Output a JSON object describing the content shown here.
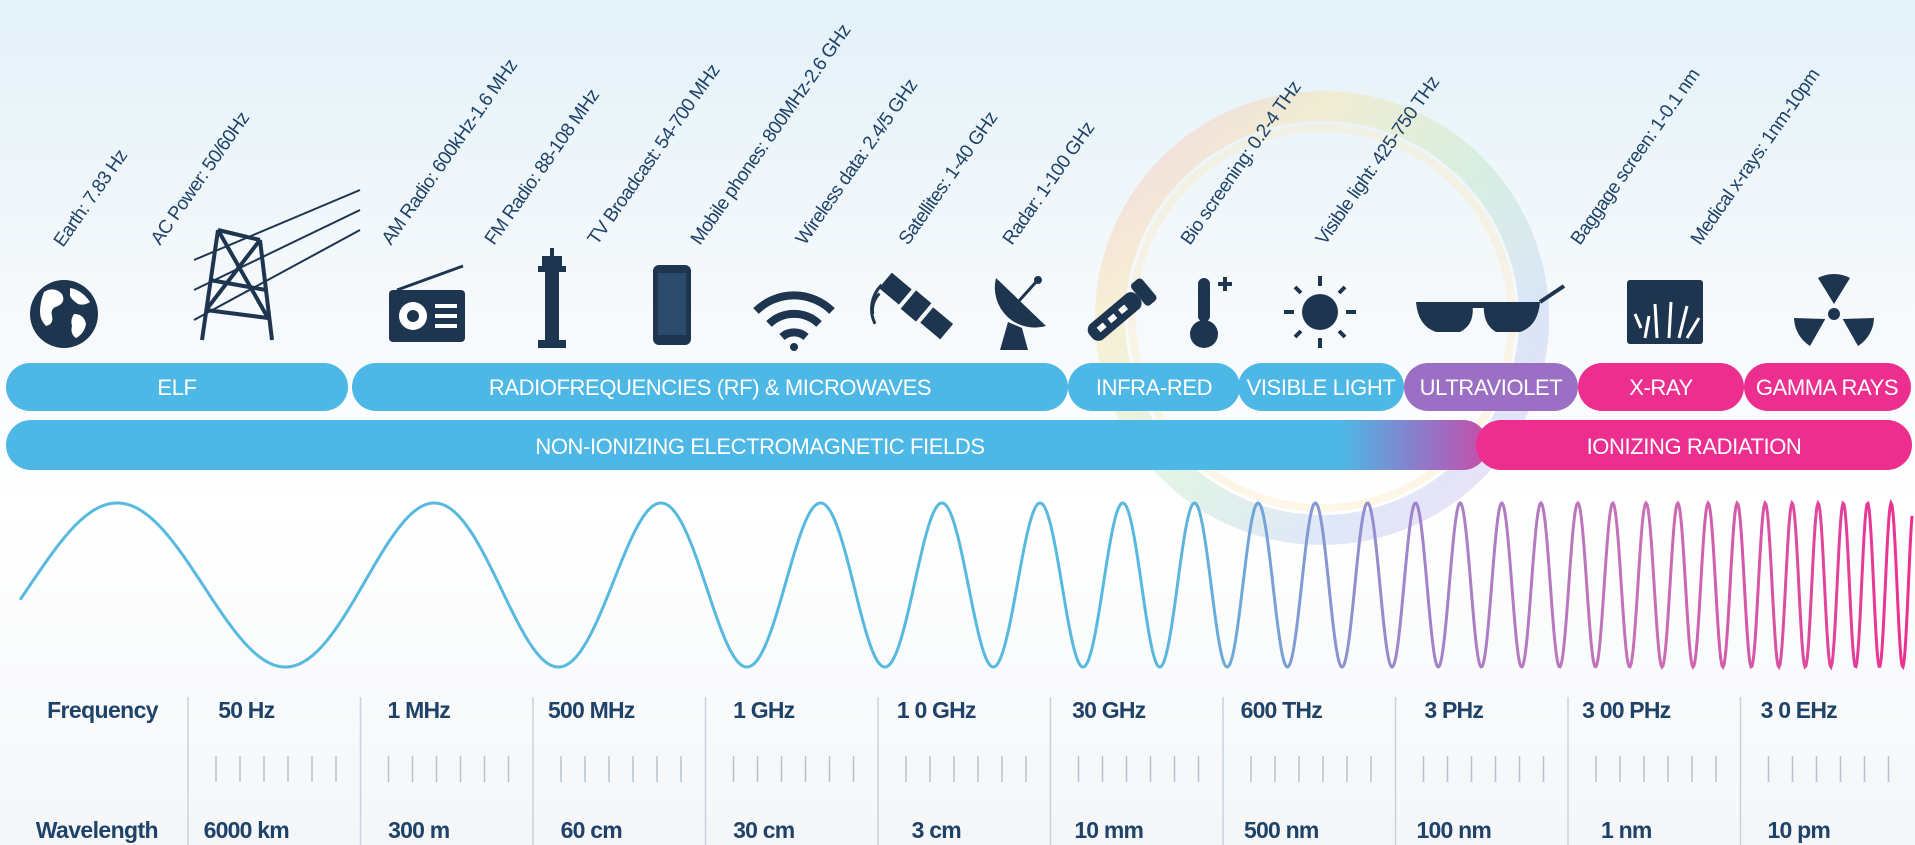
{
  "sources": [
    {
      "label": "Earth: 7.83 Hz",
      "icon": "earth-globe-icon"
    },
    {
      "label": "AC Power: 50/60Hz",
      "icon": "power-line-tower-icon"
    },
    {
      "label": "AM Radio: 600kHz-1.6 MHz",
      "icon": "radio-icon"
    },
    {
      "label": "FM Radio: 88-108 MHz",
      "icon": "broadcast-tower-icon"
    },
    {
      "label": "TV Broadcast: 54-700 MHz",
      "icon": "smartphone-icon"
    },
    {
      "label": "Mobile phones: 800MHz-2.6 GHz",
      "icon": "wifi-icon"
    },
    {
      "label": "Wireless data: 2.4/5 GHz",
      "icon": "satellite-icon"
    },
    {
      "label": "Satellites: 1-40 GHz",
      "icon": "radar-dish-icon"
    },
    {
      "label": "Radar: 1-100 GHz",
      "icon": "infrared-scanner-icon"
    },
    {
      "label": "Bio screening: 0.2-4 THz",
      "icon": "thermometer-icon"
    },
    {
      "label": "Visible light: 425-750 THz",
      "icon": "sun-icon"
    },
    {
      "label": "Baggage screen: 1-0.1 nm",
      "icon": "sunglasses-icon"
    },
    {
      "label": "Medical x-rays: 1nm-10pm",
      "icon": "xray-hand-icon"
    },
    {
      "label": "",
      "icon": "radiation-icon"
    }
  ],
  "bands": [
    {
      "label": "ELF",
      "color": "#4db8e6"
    },
    {
      "label": "RADIOFREQUENCIES (RF) & MICROWAVES",
      "color": "#4db8e6"
    },
    {
      "label": "INFRA-RED",
      "color": "#4db8e6"
    },
    {
      "label": "VISIBLE LIGHT",
      "color": "#4db8e6"
    },
    {
      "label": "ULTRAVIOLET",
      "color": "#9b6fc4"
    },
    {
      "label": "X-RAY",
      "color": "#ec2f8f"
    },
    {
      "label": "GAMMA RAYS",
      "color": "#ec2f8f"
    }
  ],
  "categories": [
    {
      "label": "NON-IONIZING ELECTROMAGNETIC FIELDS",
      "color": "#4db8e6"
    },
    {
      "label": "IONIZING RADIATION",
      "color": "#ec2f8f"
    }
  ],
  "table": {
    "frequency_label": "Frequency",
    "wavelength_label": "Wavelength",
    "frequencies": [
      "50 Hz",
      "1 MHz",
      "500 MHz",
      "1 GHz",
      "1 0 GHz",
      "30 GHz",
      "600 THz",
      "3 PHz",
      "3 00 PHz",
      "3 0 EHz"
    ],
    "wavelengths": [
      "6000 km",
      "300 m",
      "60 cm",
      "30 cm",
      "3 cm",
      "10 mm",
      "500 nm",
      "100 nm",
      "1 nm",
      "10 pm"
    ]
  },
  "colors": {
    "text": "#1e4268",
    "blue": "#4db8e6",
    "purple": "#9b6fc4",
    "pink": "#ec2f8f",
    "icon": "#1e3550"
  }
}
